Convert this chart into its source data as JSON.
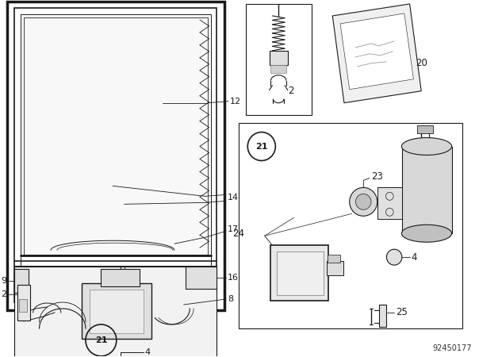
{
  "bg_color": "#ffffff",
  "line_color": "#1a1a1a",
  "doc_number": "92450177",
  "fig_width": 6.04,
  "fig_height": 4.5,
  "dpi": 100
}
